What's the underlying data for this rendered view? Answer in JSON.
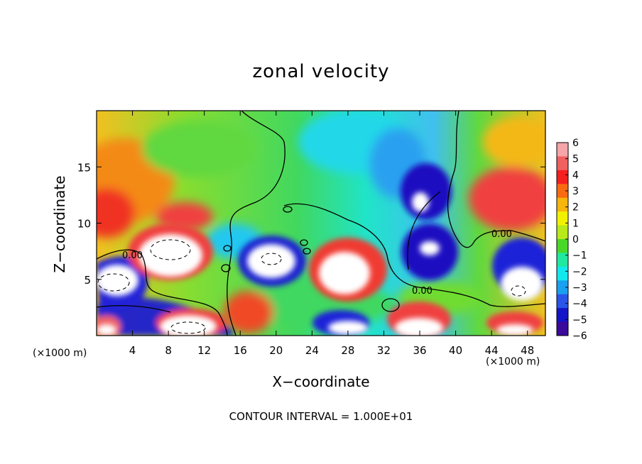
{
  "chart_data": {
    "type": "heatmap",
    "title": "zonal velocity",
    "xlabel": "X−coordinate",
    "ylabel": "Z−coordinate",
    "x_unit_note_left": "(×1000 m)",
    "x_unit_note_right": "(×1000 m)",
    "footer": "CONTOUR INTERVAL = 1.000E+01",
    "xlim": [
      0,
      50
    ],
    "ylim": [
      0,
      20
    ],
    "x_ticks": [
      4,
      8,
      12,
      16,
      20,
      24,
      28,
      32,
      36,
      40,
      44,
      48
    ],
    "y_ticks": [
      5,
      10,
      15
    ],
    "colorbar": {
      "ticks": [
        "6",
        "5",
        "4",
        "3",
        "2",
        "1",
        "0",
        "−1",
        "−2",
        "−3",
        "−4",
        "−5",
        "−6"
      ],
      "range": [
        -6,
        6
      ],
      "colors": [
        "#f6a5a8",
        "#f06060",
        "#f42020",
        "#f86b10",
        "#f6b60c",
        "#f2f200",
        "#b8ea1a",
        "#48d828",
        "#20e8a0",
        "#12e8ee",
        "#19a0f0",
        "#2a55e8",
        "#1414c8",
        "#3a0a9a"
      ]
    },
    "contour_labels": [
      "0.00",
      "0.00",
      "0.00"
    ],
    "field_regions": [
      {
        "name": "upper-left-warm",
        "x": [
          0,
          14
        ],
        "z": [
          9,
          20
        ],
        "value": 3
      },
      {
        "name": "left-white-core",
        "x": [
          4,
          12
        ],
        "z": [
          6,
          10
        ],
        "value": 6.5
      },
      {
        "name": "left-lower-white",
        "x": [
          0,
          5
        ],
        "z": [
          3.5,
          6.5
        ],
        "value": 6.5
      },
      {
        "name": "blue-band-left",
        "x": [
          0,
          15
        ],
        "z": [
          1.5,
          4
        ],
        "value": -5
      },
      {
        "name": "bottom-white-6-14",
        "x": [
          6,
          13
        ],
        "z": [
          0,
          2
        ],
        "value": 6.5
      },
      {
        "name": "blue-ring-20",
        "x": [
          15,
          23
        ],
        "z": [
          4,
          9
        ],
        "value": -5
      },
      {
        "name": "white-core-20",
        "x": [
          17,
          22
        ],
        "z": [
          5,
          8
        ],
        "value": 6.5
      },
      {
        "name": "red-lobe-28",
        "x": [
          23,
          31
        ],
        "z": [
          3,
          8.5
        ],
        "value": 4
      },
      {
        "name": "white-core-28",
        "x": [
          25,
          30
        ],
        "z": [
          3.5,
          7.5
        ],
        "value": 6.5
      },
      {
        "name": "cyan-upper-center",
        "x": [
          28,
          36
        ],
        "z": [
          14,
          20
        ],
        "value": -2
      },
      {
        "name": "dark-blue-36",
        "x": [
          33,
          39
        ],
        "z": [
          6,
          14
        ],
        "value": -5.5
      },
      {
        "name": "white-core-36-upper",
        "x": [
          35,
          37
        ],
        "z": [
          11,
          13
        ],
        "value": 6.5
      },
      {
        "name": "white-core-36-lower",
        "x": [
          35,
          38
        ],
        "z": [
          7,
          8.5
        ],
        "value": 6.5
      },
      {
        "name": "red-upper-right",
        "x": [
          41,
          50
        ],
        "z": [
          9,
          16
        ],
        "value": 4.5
      },
      {
        "name": "blue-ring-46",
        "x": [
          43,
          50
        ],
        "z": [
          3,
          8
        ],
        "value": -5
      },
      {
        "name": "white-core-46",
        "x": [
          45,
          50
        ],
        "z": [
          3,
          6
        ],
        "value": 6.5
      },
      {
        "name": "bottom-white-36",
        "x": [
          32,
          40
        ],
        "z": [
          0,
          2.5
        ],
        "value": 6.5
      }
    ]
  }
}
